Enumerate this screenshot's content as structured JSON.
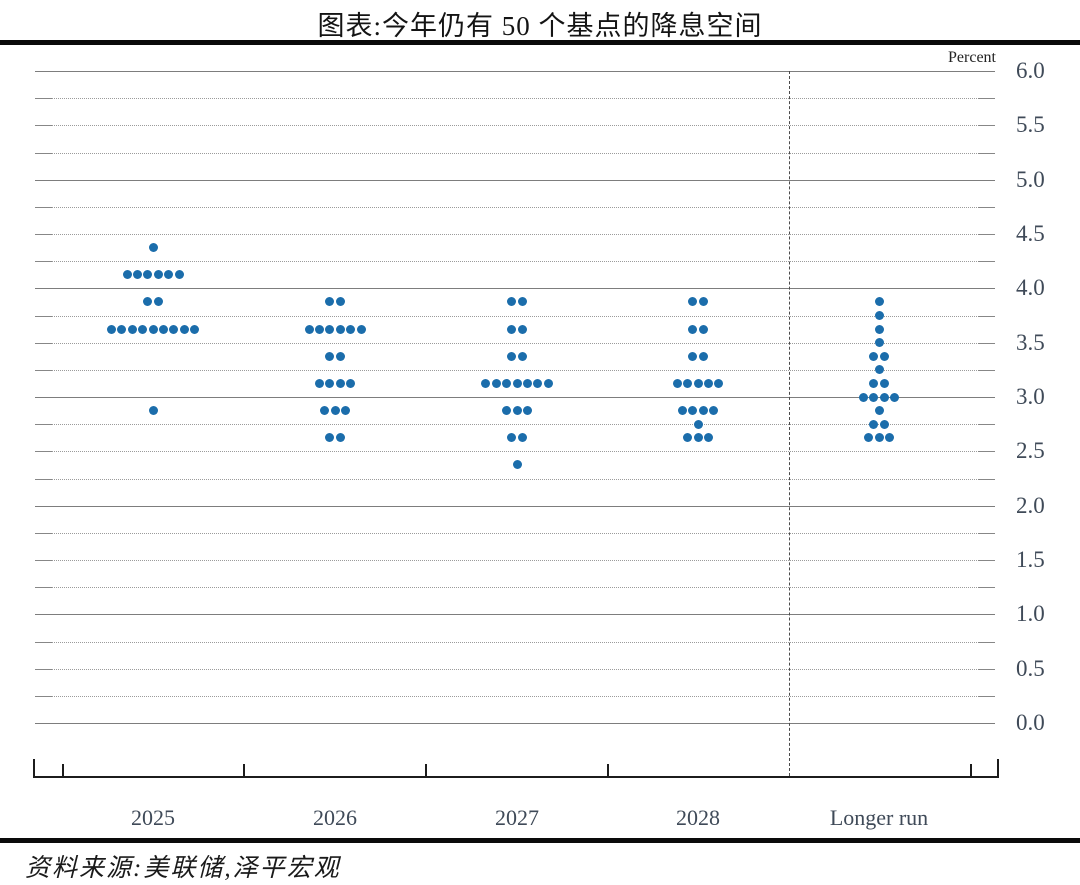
{
  "title": "图表:今年仍有 50 个基点的降息空间",
  "source": "资料来源:美联储,泽平宏观",
  "chart_data": {
    "type": "scatter",
    "subtype": "fomc-dot-plot",
    "title": "图表:今年仍有 50 个基点的降息空间",
    "unit_label": "Percent",
    "categories": [
      "2025",
      "2026",
      "2027",
      "2028",
      "Longer run"
    ],
    "ylim": [
      0.0,
      6.0
    ],
    "ytick_labels": [
      "0.0",
      "0.5",
      "1.0",
      "1.5",
      "2.0",
      "2.5",
      "3.0",
      "3.5",
      "4.0",
      "4.5",
      "5.0",
      "5.5",
      "6.0"
    ],
    "grid_minor_step": 0.25,
    "grid_solid_at_integers": true,
    "legend": "none",
    "dot_color": "#1b6dab",
    "series": [
      {
        "category": "2025",
        "distribution": [
          [
            4.375,
            1
          ],
          [
            4.125,
            6
          ],
          [
            3.875,
            2
          ],
          [
            3.625,
            9
          ],
          [
            2.875,
            1
          ]
        ]
      },
      {
        "category": "2026",
        "distribution": [
          [
            3.875,
            2
          ],
          [
            3.625,
            6
          ],
          [
            3.375,
            2
          ],
          [
            3.125,
            4
          ],
          [
            2.875,
            3
          ],
          [
            2.625,
            2
          ]
        ]
      },
      {
        "category": "2027",
        "distribution": [
          [
            3.875,
            2
          ],
          [
            3.625,
            2
          ],
          [
            3.375,
            2
          ],
          [
            3.125,
            7
          ],
          [
            2.875,
            3
          ],
          [
            2.625,
            2
          ],
          [
            2.375,
            1
          ]
        ]
      },
      {
        "category": "2028",
        "distribution": [
          [
            3.875,
            2
          ],
          [
            3.625,
            2
          ],
          [
            3.375,
            2
          ],
          [
            3.125,
            5
          ],
          [
            2.875,
            4
          ],
          [
            2.75,
            1
          ],
          [
            2.625,
            3
          ]
        ]
      },
      {
        "category": "Longer run",
        "distribution": [
          [
            3.875,
            1
          ],
          [
            3.75,
            1
          ],
          [
            3.625,
            1
          ],
          [
            3.5,
            1
          ],
          [
            3.375,
            2
          ],
          [
            3.25,
            1
          ],
          [
            3.125,
            2
          ],
          [
            3.0,
            4
          ],
          [
            2.875,
            1
          ],
          [
            2.75,
            2
          ],
          [
            2.625,
            3
          ]
        ]
      }
    ]
  }
}
